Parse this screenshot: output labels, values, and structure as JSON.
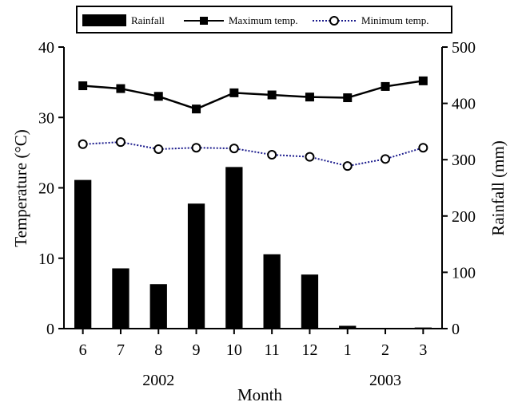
{
  "chart_data": {
    "type": "bar",
    "categories": [
      "6",
      "7",
      "8",
      "9",
      "10",
      "11",
      "12",
      "1",
      "2",
      "3"
    ],
    "year_labels": [
      {
        "text": "2002",
        "near_category": "8"
      },
      {
        "text": "2003",
        "near_category": "2"
      }
    ],
    "series": [
      {
        "name": "Rainfall",
        "type": "bar",
        "axis": "right",
        "values": [
          264,
          107,
          79,
          222,
          287,
          132,
          96,
          5,
          0,
          2
        ]
      },
      {
        "name": "Maximum temp.",
        "type": "line",
        "axis": "left",
        "values": [
          34.5,
          34.1,
          33.0,
          31.2,
          33.5,
          33.2,
          32.9,
          32.8,
          34.4,
          35.2
        ]
      },
      {
        "name": "Minimum temp.",
        "type": "line",
        "axis": "left",
        "values": [
          26.2,
          26.5,
          25.5,
          25.7,
          25.6,
          24.7,
          24.4,
          23.1,
          24.1,
          25.7
        ]
      }
    ],
    "xlabel": "Month",
    "ylabel_left": "Temperature (°C)",
    "ylabel_right": "Rainfall (mm)",
    "ylim_left": [
      0,
      40
    ],
    "yticks_left": [
      "0",
      "10",
      "20",
      "30",
      "40"
    ],
    "ylim_right": [
      0,
      500
    ],
    "yticks_right": [
      "0",
      "100",
      "200",
      "300",
      "400",
      "500"
    ],
    "legend_position": "top",
    "grid": false,
    "colors": {
      "rainfall_bar": "#000000",
      "max_temp_line": "#000000",
      "min_temp_line": "#1a1a8c",
      "min_temp_marker_fill": "#ffffff"
    }
  }
}
